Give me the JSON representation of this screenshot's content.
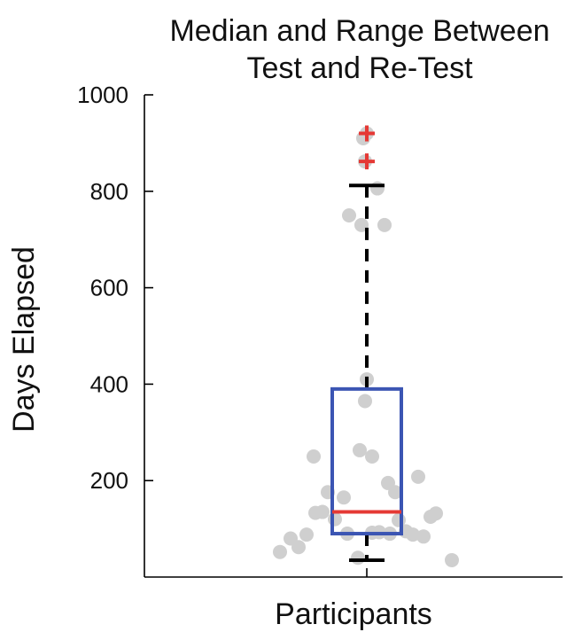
{
  "chart_data": {
    "type": "box",
    "title_lines": [
      "Median and Range Between",
      "Test and Re-Test"
    ],
    "xlabel": "Participants",
    "ylabel": "Days Elapsed",
    "ylim": [
      0,
      1000
    ],
    "yticks": [
      200,
      400,
      600,
      800,
      1000
    ],
    "colors": {
      "box": "#3b55b3",
      "median": "#e53935",
      "whisker": "#000000",
      "outlier": "#e53935",
      "points": "#cfcfcf",
      "axis": "#000000"
    },
    "box": {
      "q1": 90,
      "median": 135,
      "q3": 390,
      "whisker_low": 35,
      "whisker_high": 812
    },
    "outliers": [
      920,
      862
    ],
    "points": [
      {
        "x": -0.98,
        "y": 52
      },
      {
        "x": -0.86,
        "y": 80
      },
      {
        "x": -0.77,
        "y": 62
      },
      {
        "x": -0.68,
        "y": 88
      },
      {
        "x": -0.6,
        "y": 250
      },
      {
        "x": -0.58,
        "y": 133
      },
      {
        "x": -0.5,
        "y": 135
      },
      {
        "x": -0.44,
        "y": 176
      },
      {
        "x": -0.36,
        "y": 120
      },
      {
        "x": -0.26,
        "y": 165
      },
      {
        "x": -0.22,
        "y": 90
      },
      {
        "x": -0.2,
        "y": 750
      },
      {
        "x": -0.1,
        "y": 40
      },
      {
        "x": -0.06,
        "y": 730
      },
      {
        "x": -0.04,
        "y": 910
      },
      {
        "x": -0.02,
        "y": 862
      },
      {
        "x": 0.0,
        "y": 410
      },
      {
        "x": -0.02,
        "y": 365
      },
      {
        "x": 0.0,
        "y": 920
      },
      {
        "x": 0.06,
        "y": 92
      },
      {
        "x": 0.12,
        "y": 806
      },
      {
        "x": 0.14,
        "y": 93
      },
      {
        "x": 0.2,
        "y": 730
      },
      {
        "x": -0.08,
        "y": 263
      },
      {
        "x": 0.06,
        "y": 250
      },
      {
        "x": 0.24,
        "y": 195
      },
      {
        "x": 0.32,
        "y": 176
      },
      {
        "x": 0.26,
        "y": 90
      },
      {
        "x": 0.36,
        "y": 118
      },
      {
        "x": 0.44,
        "y": 95
      },
      {
        "x": 0.52,
        "y": 88
      },
      {
        "x": 0.58,
        "y": 208
      },
      {
        "x": 0.64,
        "y": 84
      },
      {
        "x": 0.72,
        "y": 125
      },
      {
        "x": 0.78,
        "y": 132
      },
      {
        "x": 0.96,
        "y": 35
      }
    ]
  }
}
